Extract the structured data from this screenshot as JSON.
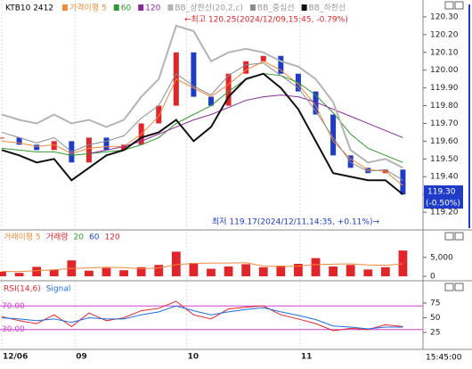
{
  "chart_data": [
    {
      "type": "line",
      "title": "KTB10 2412",
      "x": [
        0,
        1,
        2,
        3,
        4,
        5,
        6,
        7,
        8,
        9,
        10,
        11,
        12,
        13,
        14,
        15,
        16,
        17,
        18,
        19,
        20,
        21,
        22,
        23
      ],
      "xlim": [
        0,
        24
      ],
      "ylim": [
        119.1,
        120.38
      ],
      "yticks": [
        {
          "value": 119.2,
          "label": "119.20"
        },
        {
          "value": 119.3,
          "label": "119.30"
        },
        {
          "value": 119.4,
          "label": "119.40"
        },
        {
          "value": 119.5,
          "label": "119.50"
        },
        {
          "value": 119.6,
          "label": "119.60"
        },
        {
          "value": 119.7,
          "label": "119.70"
        },
        {
          "value": 119.8,
          "label": "119.80"
        },
        {
          "value": 119.9,
          "label": "119.90"
        },
        {
          "value": 120,
          "label": "120.00"
        },
        {
          "value": 120.1,
          "label": "120.10"
        },
        {
          "value": 120.2,
          "label": "120.20"
        },
        {
          "value": 120.3,
          "label": "120.30"
        }
      ],
      "xticks": [
        {
          "value": 0,
          "label": "12/06"
        },
        {
          "value": 4.2,
          "label": "09"
        },
        {
          "value": 10.6,
          "label": "10"
        },
        {
          "value": 17.1,
          "label": "11"
        }
      ],
      "close": [
        119.62,
        119.58,
        119.55,
        119.6,
        119.48,
        119.62,
        119.55,
        119.58,
        119.7,
        119.8,
        120.1,
        119.85,
        119.8,
        119.98,
        120.05,
        120.08,
        119.98,
        119.88,
        119.75,
        119.52,
        119.45,
        119.42,
        119.44,
        119.3
      ],
      "up_color": "#e0262a",
      "down_color": "#1e3cc8",
      "series": [
        {
          "name": "가격이평 5",
          "color": "#f08a3c",
          "values": [
            119.6,
            119.59,
            119.57,
            119.58,
            119.53,
            119.56,
            119.57,
            119.57,
            119.64,
            119.74,
            119.95,
            119.9,
            119.85,
            119.92,
            120.0,
            120.05,
            120.0,
            119.92,
            119.8,
            119.6,
            119.5,
            119.44,
            119.43,
            119.35
          ]
        },
        {
          "name": "60",
          "color": "#2e9a2e",
          "values": [
            119.56,
            119.55,
            119.54,
            119.54,
            119.52,
            119.53,
            119.54,
            119.55,
            119.58,
            119.62,
            119.7,
            119.75,
            119.8,
            119.88,
            119.95,
            119.98,
            119.97,
            119.93,
            119.86,
            119.76,
            119.64,
            119.56,
            119.52,
            119.48
          ]
        },
        {
          "name": "120",
          "color": "#8a2a9a",
          "values": [
            null,
            null,
            null,
            null,
            null,
            119.53,
            119.55,
            119.57,
            119.6,
            119.64,
            119.68,
            119.72,
            119.75,
            119.79,
            119.83,
            119.85,
            119.86,
            119.85,
            119.82,
            119.78,
            119.74,
            119.7,
            119.66,
            119.62
          ]
        },
        {
          "name": "BB_상한선(20,2,c)",
          "color": "#b4b4b4",
          "values": [
            119.75,
            119.72,
            119.7,
            119.75,
            119.7,
            119.72,
            119.68,
            119.72,
            119.85,
            119.95,
            120.25,
            120.22,
            120.05,
            120.1,
            120.12,
            120.1,
            120.05,
            120.02,
            119.95,
            119.82,
            119.55,
            119.48,
            119.5,
            119.45
          ]
        },
        {
          "name": "BB_중심선",
          "color": "#8c8c8c",
          "values": [
            119.65,
            119.62,
            119.59,
            119.62,
            119.54,
            119.58,
            119.6,
            119.63,
            119.73,
            119.8,
            119.98,
            119.91,
            119.86,
            119.97,
            120.03,
            120.04,
            119.97,
            119.9,
            119.77,
            119.62,
            119.48,
            119.43,
            119.44,
            119.38
          ]
        },
        {
          "name": "BB_하한선",
          "color": "#111111",
          "values": [
            119.55,
            119.52,
            119.48,
            119.5,
            119.38,
            119.45,
            119.52,
            119.55,
            119.62,
            119.65,
            119.72,
            119.6,
            119.68,
            119.85,
            119.95,
            119.98,
            119.9,
            119.78,
            119.6,
            119.42,
            119.4,
            119.38,
            119.38,
            119.3
          ]
        }
      ],
      "annotations": [
        {
          "text": "←최고 120.25(2024/12/09,15:45, -0.79%)",
          "color": "#e0262a"
        },
        {
          "text": "최저 119.17(2024/12/11,14:35, +0.11%)→",
          "color": "#1e3cc8"
        }
      ],
      "last_price": "119.30",
      "last_change": "(-0.50%)"
    },
    {
      "type": "bar",
      "x": [
        0,
        1,
        2,
        3,
        4,
        5,
        6,
        7,
        8,
        9,
        10,
        11,
        12,
        13,
        14,
        15,
        16,
        17,
        18,
        19,
        20,
        21,
        22,
        23
      ],
      "xlim": [
        0,
        24
      ],
      "ylim": [
        0,
        8000
      ],
      "yticks": [
        0,
        {
          "value": 5000,
          "label": "5,000"
        }
      ],
      "series": [
        {
          "name": "거래량",
          "color": "#e0262a",
          "values": [
            1200,
            900,
            2500,
            1800,
            4200,
            1500,
            2200,
            1600,
            2400,
            3000,
            6500,
            3500,
            2000,
            2600,
            3200,
            2400,
            2800,
            3300,
            4800,
            2600,
            3000,
            1800,
            2400,
            6800
          ]
        },
        {
          "name": "거래이평 5",
          "color": "#f08a3c",
          "values": [
            1300,
            1250,
            1500,
            1700,
            2100,
            2200,
            2400,
            2300,
            2000,
            2200,
            3100,
            3400,
            3500,
            3500,
            3600,
            2700,
            2600,
            2700,
            3100,
            3200,
            3300,
            3000,
            2900,
            3300
          ]
        }
      ],
      "legend_labels": [
        "20",
        "60",
        "120"
      ]
    },
    {
      "type": "line",
      "x": [
        0,
        1,
        2,
        3,
        4,
        5,
        6,
        7,
        8,
        9,
        10,
        11,
        12,
        13,
        14,
        15,
        16,
        17,
        18,
        19,
        20,
        21,
        22,
        23
      ],
      "xlim": [
        0,
        24
      ],
      "ylim": [
        0,
        100
      ],
      "yticks": [
        25,
        50,
        75
      ],
      "levels": [
        {
          "value": 70,
          "label": "70.00"
        },
        {
          "value": 30,
          "label": "30.00"
        }
      ],
      "series": [
        {
          "name": "RSI(14,6)",
          "color": "#e0262a",
          "values": [
            52,
            45,
            40,
            55,
            35,
            58,
            45,
            50,
            62,
            66,
            78,
            55,
            48,
            65,
            68,
            70,
            55,
            48,
            40,
            28,
            32,
            30,
            38,
            35
          ]
        },
        {
          "name": "Signal",
          "color": "#1e6ee0",
          "values": [
            50,
            48,
            45,
            48,
            42,
            50,
            48,
            48,
            55,
            60,
            70,
            62,
            55,
            60,
            64,
            67,
            60,
            54,
            47,
            36,
            34,
            31,
            34,
            34
          ]
        }
      ]
    }
  ],
  "footer": {
    "time": "15:45:00"
  }
}
